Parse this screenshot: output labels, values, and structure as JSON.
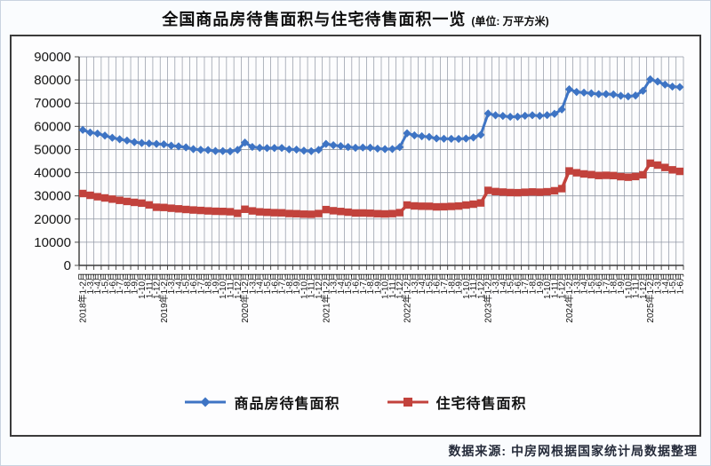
{
  "title": {
    "main": "全国商品房待售面积与住宅待售面积一览",
    "unit": "(单位: 万平方米)"
  },
  "source": "数据来源: 中房网根据国家统计局数据整理",
  "colors": {
    "series1": "#3e74c4",
    "series2": "#c2423c",
    "grid": "#8e95a2",
    "axis": "#3a3a3a",
    "tick": "#4a4a4a",
    "label": "#161616"
  },
  "chart_data": {
    "type": "line",
    "title": "全国商品房待售面积与住宅待售面积一览",
    "unit_label": "万平方米",
    "xlabel": "",
    "ylabel": "",
    "ylim": [
      0,
      90000
    ],
    "yticks": [
      0,
      10000,
      20000,
      30000,
      40000,
      50000,
      60000,
      70000,
      80000,
      90000
    ],
    "grid": true,
    "legend_position": "bottom",
    "categories": [
      "2018年1-2月",
      "1-3月",
      "1-4月",
      "1-5月",
      "1-6月",
      "1-7月",
      "1-8月",
      "1-9月",
      "1-10月",
      "1-11月",
      "1-12月",
      "2019年1-2月",
      "1-3月",
      "1-4月",
      "1-5月",
      "1-6月",
      "1-7月",
      "1-8月",
      "1-9月",
      "1-10月",
      "1-11月",
      "1-12月",
      "2020年1-2月",
      "1-3月",
      "1-4月",
      "1-5月",
      "1-6月",
      "1-7月",
      "1-8月",
      "1-9月",
      "1-10月",
      "1-11月",
      "1-12月",
      "2021年1-2月",
      "1-3月",
      "1-4月",
      "1-5月",
      "1-6月",
      "1-7月",
      "1-8月",
      "1-9月",
      "1-10月",
      "1-11月",
      "1-12月",
      "2022年1-2月",
      "1-3月",
      "1-4月",
      "1-5月",
      "1-6月",
      "1-7月",
      "1-8月",
      "1-9月",
      "1-10月",
      "1-11月",
      "1-12月",
      "2023年1-2月",
      "1-3月",
      "1-4月",
      "1-5月",
      "1-6月",
      "1-7月",
      "1-8月",
      "1-9月",
      "1-10月",
      "1-11月",
      "1-12月",
      "2024年1-2月",
      "1-3月",
      "1-4月",
      "1-5月",
      "1-6月",
      "1-7月",
      "1-8月",
      "1-9月",
      "1-10月",
      "1-11月",
      "1-12月",
      "2025年1-2月",
      "1-3月",
      "1-4月",
      "1-5月",
      "1-6月"
    ],
    "series": [
      {
        "name": "商品房待售面积",
        "marker": "diamond",
        "color": "#3e74c4",
        "values": [
          58468,
          57329,
          56896,
          56010,
          55083,
          54428,
          53873,
          53191,
          52789,
          52627,
          52414,
          52251,
          51646,
          51380,
          50928,
          50162,
          49876,
          49784,
          49346,
          49323,
          49221,
          49821,
          52987,
          51104,
          50756,
          50617,
          50662,
          50682,
          50052,
          49955,
          49492,
          49287,
          49850,
          52425,
          51835,
          51480,
          51087,
          50738,
          50864,
          50794,
          50385,
          50173,
          50203,
          51023,
          57026,
          56113,
          55735,
          55433,
          54784,
          54655,
          54605,
          54573,
          54734,
          55203,
          56366,
          65528,
          64770,
          64487,
          64120,
          64159,
          64564,
          64795,
          64537,
          64835,
          65385,
          67295,
          75969,
          74833,
          74553,
          74256,
          73894,
          73926,
          73783,
          73177,
          72920,
          73286,
          75327,
          80290,
          79315,
          78014,
          77137,
          76948
        ]
      },
      {
        "name": "住宅待售面积",
        "marker": "square",
        "color": "#c2423c",
        "values": [
          31018,
          30250,
          29632,
          29100,
          28590,
          28069,
          27602,
          27204,
          26858,
          26100,
          25091,
          24994,
          24662,
          24404,
          24130,
          23902,
          23715,
          23512,
          23355,
          23286,
          23148,
          22473,
          24224,
          23512,
          23106,
          22904,
          22742,
          22688,
          22381,
          22296,
          22114,
          22051,
          22379,
          24079,
          23585,
          23270,
          22958,
          22606,
          22614,
          22506,
          22312,
          22215,
          22344,
          22761,
          26052,
          25664,
          25532,
          25509,
          25249,
          25311,
          25444,
          25614,
          26040,
          26410,
          26947,
          32369,
          31856,
          31640,
          31434,
          31365,
          31563,
          31693,
          31587,
          31774,
          32201,
          33119,
          40751,
          39968,
          39466,
          39171,
          38779,
          38863,
          38754,
          38276,
          38051,
          38346,
          39088,
          44089,
          43277,
          42254,
          41233,
          40580
        ]
      }
    ]
  }
}
